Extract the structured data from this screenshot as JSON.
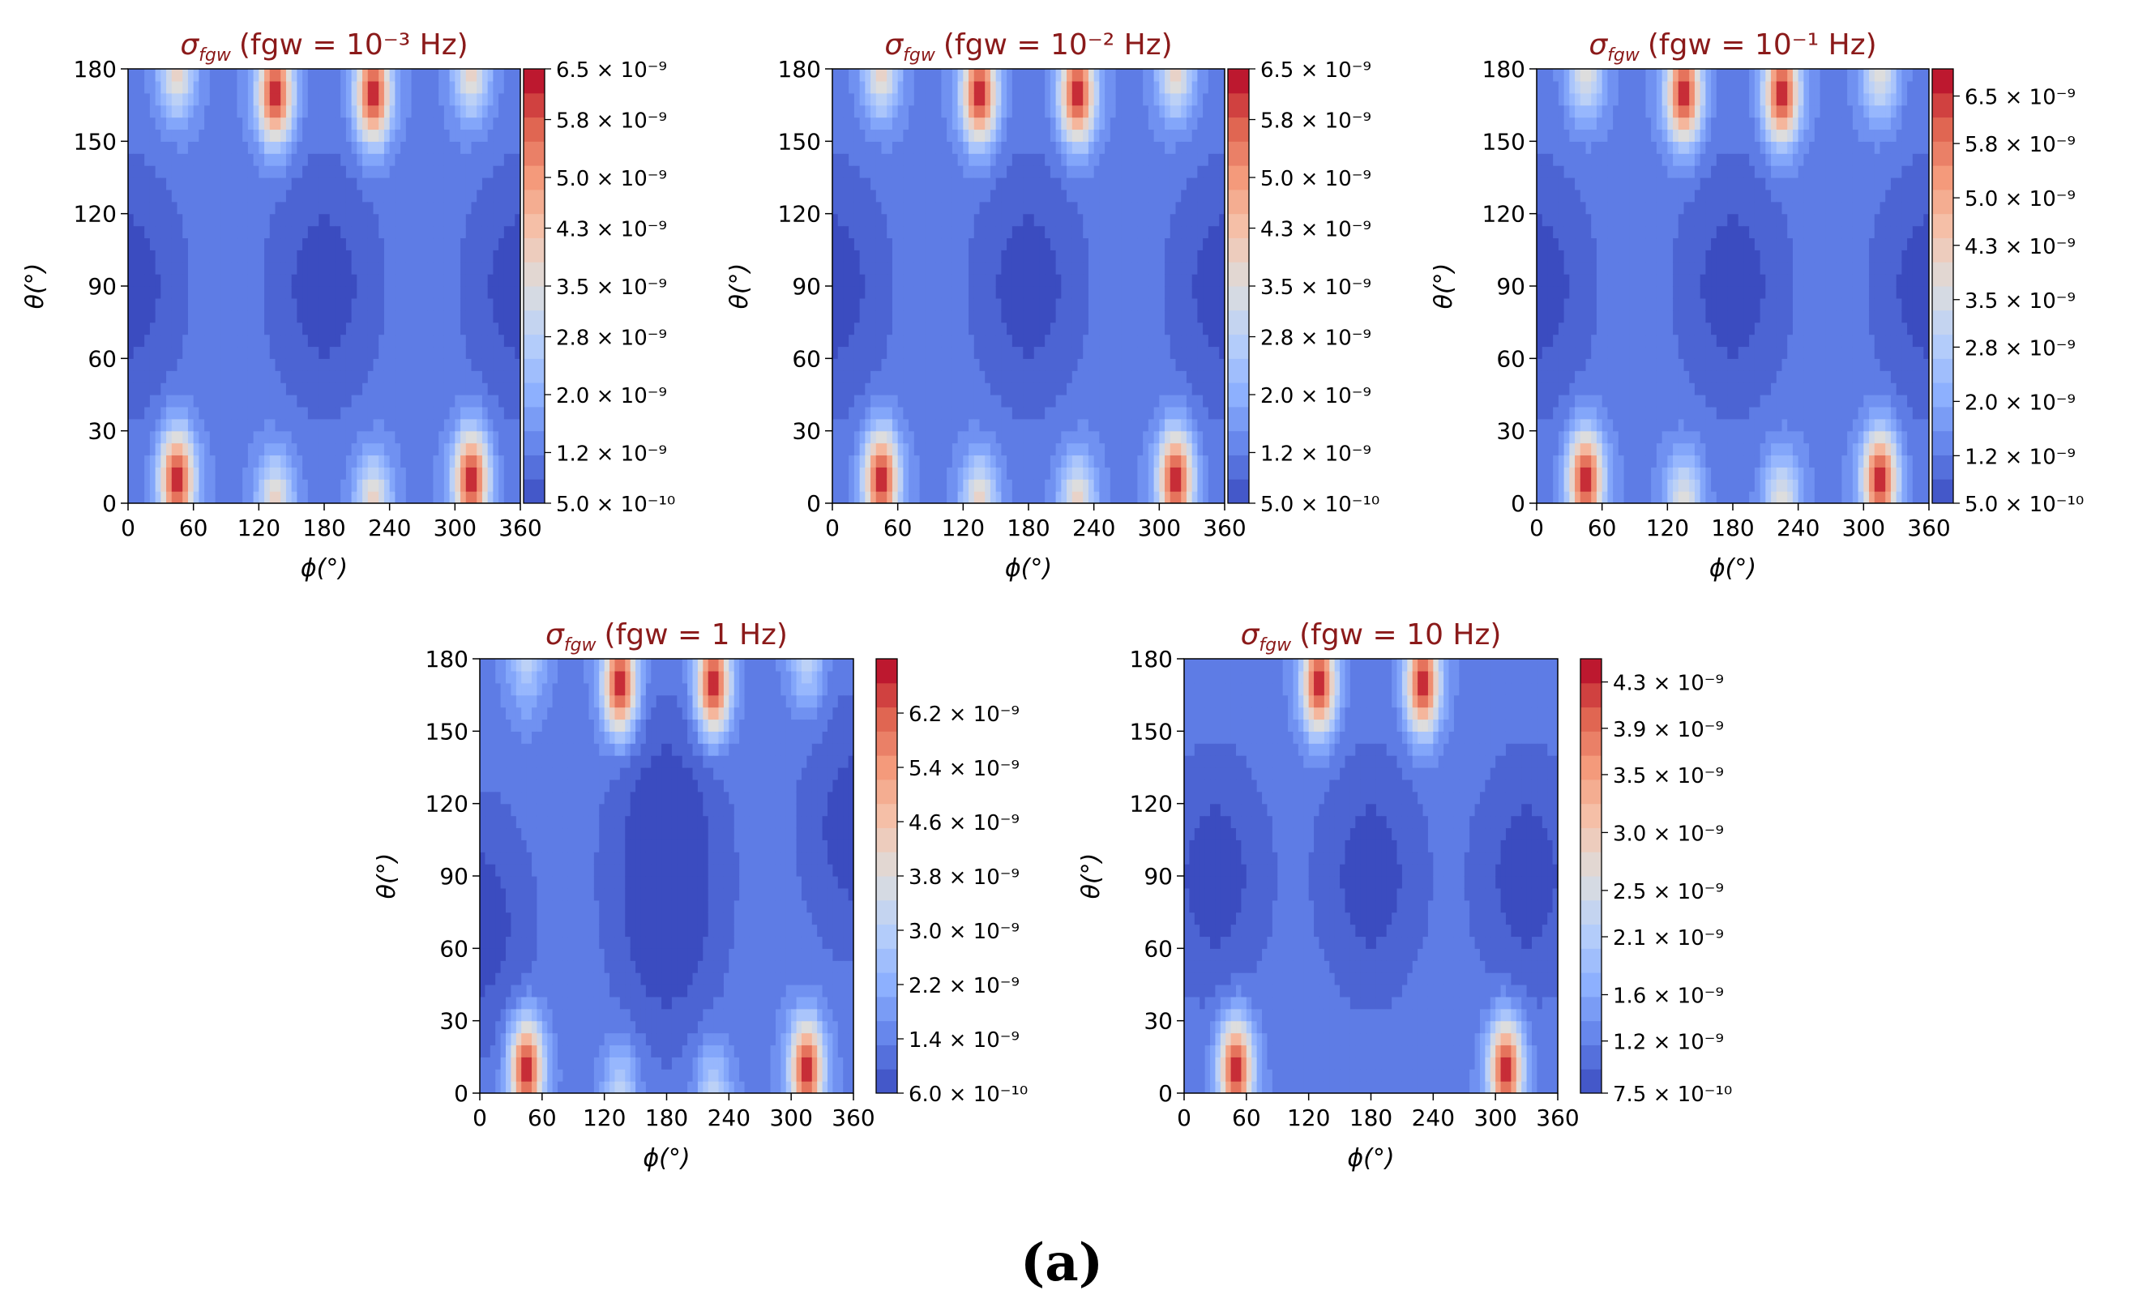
{
  "caption": "(a)",
  "chart_data": [
    {
      "type": "heatmap",
      "title_symbol": "σ",
      "title_sub": "fgw",
      "title_text": "(fgw = 10⁻³ Hz)",
      "xlabel": "ϕ(°)",
      "ylabel": "θ(°)",
      "xlim": [
        0,
        360
      ],
      "ylim": [
        0,
        180
      ],
      "xticks": [
        "0",
        "60",
        "120",
        "180",
        "240",
        "300",
        "360"
      ],
      "yticks": [
        "0",
        "30",
        "60",
        "90",
        "120",
        "150",
        "180"
      ],
      "colorbar_ticks": [
        "5.0 × 10⁻¹⁰",
        "1.2 × 10⁻⁹",
        "2.0 × 10⁻⁹",
        "2.8 × 10⁻⁹",
        "3.5 × 10⁻⁹",
        "4.3 × 10⁻⁹",
        "5.0 × 10⁻⁹",
        "5.8 × 10⁻⁹",
        "6.5 × 10⁻⁹"
      ],
      "colorbar_range": [
        5e-10,
        6.5e-09
      ],
      "colormap": "coolwarm",
      "peaks": [
        {
          "phi": 45,
          "theta": 10,
          "value": 6.5e-09
        },
        {
          "phi": 315,
          "theta": 10,
          "value": 6.5e-09
        },
        {
          "phi": 135,
          "theta": 170,
          "value": 6.5e-09
        },
        {
          "phi": 225,
          "theta": 170,
          "value": 6.5e-09
        },
        {
          "phi": 45,
          "theta": 180,
          "value": 4e-09
        },
        {
          "phi": 315,
          "theta": 180,
          "value": 4e-09
        },
        {
          "phi": 135,
          "theta": 0,
          "value": 4e-09
        },
        {
          "phi": 225,
          "theta": 0,
          "value": 4e-09
        }
      ],
      "minima": [
        {
          "phi": 180,
          "theta": 90,
          "value": 5e-10
        },
        {
          "phi": 0,
          "theta": 90,
          "value": 5e-10
        },
        {
          "phi": 360,
          "theta": 90,
          "value": 5e-10
        }
      ]
    },
    {
      "type": "heatmap",
      "title_symbol": "σ",
      "title_sub": "fgw",
      "title_text": "(fgw = 10⁻² Hz)",
      "xlabel": "ϕ(°)",
      "ylabel": "θ(°)",
      "xlim": [
        0,
        360
      ],
      "ylim": [
        0,
        180
      ],
      "xticks": [
        "0",
        "60",
        "120",
        "180",
        "240",
        "300",
        "360"
      ],
      "yticks": [
        "0",
        "30",
        "60",
        "90",
        "120",
        "150",
        "180"
      ],
      "colorbar_ticks": [
        "5.0 × 10⁻¹⁰",
        "1.2 × 10⁻⁹",
        "2.0 × 10⁻⁹",
        "2.8 × 10⁻⁹",
        "3.5 × 10⁻⁹",
        "4.3 × 10⁻⁹",
        "5.0 × 10⁻⁹",
        "5.8 × 10⁻⁹",
        "6.5 × 10⁻⁹"
      ],
      "colorbar_range": [
        5e-10,
        6.5e-09
      ],
      "colormap": "coolwarm",
      "peaks": [
        {
          "phi": 45,
          "theta": 10,
          "value": 6.5e-09
        },
        {
          "phi": 315,
          "theta": 10,
          "value": 6.5e-09
        },
        {
          "phi": 135,
          "theta": 170,
          "value": 6.5e-09
        },
        {
          "phi": 225,
          "theta": 170,
          "value": 6.5e-09
        },
        {
          "phi": 45,
          "theta": 180,
          "value": 4e-09
        },
        {
          "phi": 315,
          "theta": 180,
          "value": 4e-09
        },
        {
          "phi": 135,
          "theta": 0,
          "value": 4e-09
        },
        {
          "phi": 225,
          "theta": 0,
          "value": 4e-09
        }
      ],
      "minima": [
        {
          "phi": 180,
          "theta": 90,
          "value": 5e-10
        },
        {
          "phi": 0,
          "theta": 90,
          "value": 5e-10
        },
        {
          "phi": 360,
          "theta": 90,
          "value": 5e-10
        }
      ]
    },
    {
      "type": "heatmap",
      "title_symbol": "σ",
      "title_sub": "fgw",
      "title_text": "(fgw = 10⁻¹ Hz)",
      "xlabel": "ϕ(°)",
      "ylabel": "θ(°)",
      "xlim": [
        0,
        360
      ],
      "ylim": [
        0,
        180
      ],
      "xticks": [
        "0",
        "60",
        "120",
        "180",
        "240",
        "300",
        "360"
      ],
      "yticks": [
        "0",
        "30",
        "60",
        "90",
        "120",
        "150",
        "180"
      ],
      "colorbar_ticks": [
        "5.0 × 10⁻¹⁰",
        "1.2 × 10⁻⁹",
        "2.0 × 10⁻⁹",
        "2.8 × 10⁻⁹",
        "3.5 × 10⁻⁹",
        "4.3 × 10⁻⁹",
        "5.0 × 10⁻⁹",
        "5.8 × 10⁻⁹",
        "6.5 × 10⁻⁹"
      ],
      "colorbar_range": [
        5e-10,
        6.9e-09
      ],
      "colormap": "coolwarm",
      "peaks": [
        {
          "phi": 45,
          "theta": 10,
          "value": 6.8e-09
        },
        {
          "phi": 315,
          "theta": 10,
          "value": 6.8e-09
        },
        {
          "phi": 135,
          "theta": 170,
          "value": 6.8e-09
        },
        {
          "phi": 225,
          "theta": 170,
          "value": 6.8e-09
        },
        {
          "phi": 45,
          "theta": 180,
          "value": 4e-09
        },
        {
          "phi": 315,
          "theta": 180,
          "value": 4e-09
        },
        {
          "phi": 135,
          "theta": 0,
          "value": 4e-09
        },
        {
          "phi": 225,
          "theta": 0,
          "value": 4e-09
        }
      ],
      "minima": [
        {
          "phi": 180,
          "theta": 90,
          "value": 5e-10
        },
        {
          "phi": 0,
          "theta": 90,
          "value": 5e-10
        },
        {
          "phi": 360,
          "theta": 90,
          "value": 5e-10
        }
      ]
    },
    {
      "type": "heatmap",
      "title_symbol": "σ",
      "title_sub": "fgw",
      "title_text": "(fgw = 1 Hz)",
      "xlabel": "ϕ(°)",
      "ylabel": "θ(°)",
      "xlim": [
        0,
        360
      ],
      "ylim": [
        0,
        180
      ],
      "xticks": [
        "0",
        "60",
        "120",
        "180",
        "240",
        "300",
        "360"
      ],
      "yticks": [
        "0",
        "30",
        "60",
        "90",
        "120",
        "150",
        "180"
      ],
      "colorbar_ticks": [
        "6.0 × 10⁻¹⁰",
        "1.4 × 10⁻⁹",
        "2.2 × 10⁻⁹",
        "3.0 × 10⁻⁹",
        "3.8 × 10⁻⁹",
        "4.6 × 10⁻⁹",
        "5.4 × 10⁻⁹",
        "6.2 × 10⁻⁹"
      ],
      "colorbar_range": [
        6e-10,
        7e-09
      ],
      "colormap": "coolwarm",
      "peaks": [
        {
          "phi": 45,
          "theta": 10,
          "value": 6.9e-09
        },
        {
          "phi": 315,
          "theta": 10,
          "value": 6.9e-09
        },
        {
          "phi": 135,
          "theta": 170,
          "value": 6.9e-09
        },
        {
          "phi": 225,
          "theta": 170,
          "value": 6.9e-09
        },
        {
          "phi": 45,
          "theta": 180,
          "value": 3.2e-09
        },
        {
          "phi": 315,
          "theta": 180,
          "value": 3.2e-09
        },
        {
          "phi": 135,
          "theta": 0,
          "value": 3.2e-09
        },
        {
          "phi": 225,
          "theta": 0,
          "value": 3.2e-09
        }
      ],
      "minima": [
        {
          "phi": 180,
          "theta": 70,
          "value": 6e-10
        },
        {
          "phi": 180,
          "theta": 110,
          "value": 6e-10
        },
        {
          "phi": 0,
          "theta": 70,
          "value": 6e-10
        },
        {
          "phi": 360,
          "theta": 110,
          "value": 6e-10
        }
      ]
    },
    {
      "type": "heatmap",
      "title_symbol": "σ",
      "title_sub": "fgw",
      "title_text": "(fgw = 10 Hz)",
      "xlabel": "ϕ(°)",
      "ylabel": "θ(°)",
      "xlim": [
        0,
        360
      ],
      "ylim": [
        0,
        180
      ],
      "xticks": [
        "0",
        "60",
        "120",
        "180",
        "240",
        "300",
        "360"
      ],
      "yticks": [
        "0",
        "30",
        "60",
        "90",
        "120",
        "150",
        "180"
      ],
      "colorbar_ticks": [
        "7.5 × 10⁻¹⁰",
        "1.2 × 10⁻⁹",
        "1.6 × 10⁻⁹",
        "2.1 × 10⁻⁹",
        "2.5 × 10⁻⁹",
        "3.0 × 10⁻⁹",
        "3.5 × 10⁻⁹",
        "3.9 × 10⁻⁹",
        "4.3 × 10⁻⁹"
      ],
      "colorbar_range": [
        7.5e-10,
        4.5e-09
      ],
      "colormap": "coolwarm",
      "peaks": [
        {
          "phi": 50,
          "theta": 10,
          "value": 4.5e-09
        },
        {
          "phi": 310,
          "theta": 10,
          "value": 4.5e-09
        },
        {
          "phi": 130,
          "theta": 170,
          "value": 4.5e-09
        },
        {
          "phi": 230,
          "theta": 170,
          "value": 4.5e-09
        }
      ],
      "minima": [
        {
          "phi": 180,
          "theta": 90,
          "value": 7.5e-10
        },
        {
          "phi": 30,
          "theta": 90,
          "value": 7.5e-10
        },
        {
          "phi": 330,
          "theta": 90,
          "value": 7.5e-10
        }
      ]
    }
  ]
}
